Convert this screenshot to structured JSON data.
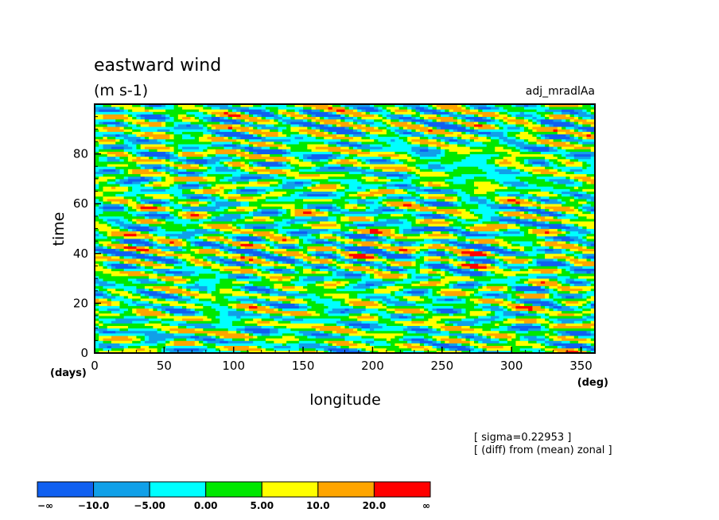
{
  "chart_data": {
    "type": "heatmap",
    "title": "eastward wind",
    "subtitle": "(m s-1)",
    "run_label": "adj_mradlAa",
    "xlabel": "longitude",
    "xunit": "(deg)",
    "ylabel": "time",
    "yunit": "(days)",
    "xlim": [
      0,
      360
    ],
    "ylim": [
      0,
      100
    ],
    "x_ticks": [
      "0",
      "50",
      "100",
      "150",
      "200",
      "250",
      "300",
      "350"
    ],
    "y_ticks": [
      "0",
      "20",
      "40",
      "60",
      "80"
    ],
    "annotations": [
      "[ sigma=0.22953 ]",
      "[ (diff) from (mean) zonal ]"
    ],
    "colorbar": {
      "levels": [
        "−∞",
        "−10.0",
        "−5.00",
        "0.00",
        "5.00",
        "10.0",
        "20.0",
        "∞"
      ],
      "bounds": [
        -10,
        -5,
        0,
        5,
        10,
        20
      ],
      "colors": [
        "#1060f0",
        "#10a0e8",
        "#00ffff",
        "#00e800",
        "#ffff00",
        "#ffa500",
        "#ff0000"
      ]
    },
    "grid": false,
    "legend": "bottom-left colorbar"
  }
}
